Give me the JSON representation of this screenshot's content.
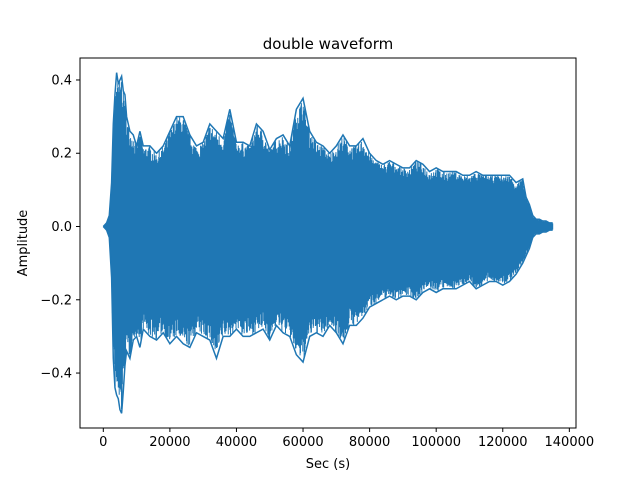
{
  "chart_data": {
    "type": "line",
    "title": "double waveform",
    "xlabel": "Sec (s)",
    "ylabel": "Amplitude",
    "xlim": [
      -7000,
      142000
    ],
    "ylim": [
      -0.55,
      0.46
    ],
    "grid": false,
    "legend": "none",
    "x_ticks": [
      0,
      20000,
      40000,
      60000,
      80000,
      100000,
      120000,
      140000
    ],
    "x_tick_labels": [
      "0",
      "20000",
      "40000",
      "60000",
      "80000",
      "100000",
      "120000",
      "140000"
    ],
    "y_ticks": [
      -0.4,
      -0.2,
      0.0,
      0.2,
      0.4
    ],
    "y_tick_labels": [
      "−0.4",
      "−0.2",
      "0.0",
      "0.2",
      "0.4"
    ],
    "series": [
      {
        "color": "#1f77b4",
        "envelope_x": [
          0,
          1000,
          1800,
          2500,
          3000,
          3500,
          4000,
          4500,
          5000,
          5500,
          6000,
          6500,
          7000,
          8000,
          9000,
          10000,
          11000,
          12000,
          14000,
          16000,
          18000,
          20000,
          22000,
          24000,
          26000,
          28000,
          30000,
          32000,
          34000,
          36000,
          38000,
          40000,
          42000,
          44000,
          46000,
          48000,
          50000,
          52000,
          54000,
          56000,
          58000,
          60000,
          62000,
          64000,
          66000,
          68000,
          70000,
          72000,
          74000,
          76000,
          78000,
          80000,
          82000,
          84000,
          86000,
          88000,
          90000,
          92000,
          94000,
          96000,
          98000,
          100000,
          102000,
          104000,
          106000,
          108000,
          110000,
          112000,
          114000,
          116000,
          118000,
          120000,
          122000,
          124000,
          126000,
          127000,
          128000,
          129000,
          130000,
          131000,
          132000,
          133000,
          134000,
          135000
        ],
        "upper": [
          0.0,
          0.01,
          0.03,
          0.12,
          0.28,
          0.36,
          0.42,
          0.39,
          0.4,
          0.41,
          0.37,
          0.36,
          0.3,
          0.26,
          0.25,
          0.22,
          0.26,
          0.22,
          0.22,
          0.2,
          0.22,
          0.26,
          0.3,
          0.3,
          0.25,
          0.22,
          0.23,
          0.28,
          0.26,
          0.24,
          0.32,
          0.23,
          0.23,
          0.22,
          0.28,
          0.26,
          0.21,
          0.24,
          0.25,
          0.22,
          0.32,
          0.35,
          0.26,
          0.23,
          0.22,
          0.2,
          0.22,
          0.25,
          0.22,
          0.22,
          0.24,
          0.2,
          0.18,
          0.17,
          0.18,
          0.17,
          0.16,
          0.16,
          0.18,
          0.17,
          0.15,
          0.16,
          0.15,
          0.15,
          0.15,
          0.14,
          0.14,
          0.15,
          0.14,
          0.14,
          0.14,
          0.14,
          0.14,
          0.12,
          0.13,
          0.08,
          0.06,
          0.03,
          0.02,
          0.02,
          0.015,
          0.015,
          0.01,
          0.01
        ],
        "lower": [
          0.0,
          -0.01,
          -0.03,
          -0.14,
          -0.36,
          -0.44,
          -0.46,
          -0.47,
          -0.5,
          -0.51,
          -0.45,
          -0.38,
          -0.34,
          -0.36,
          -0.31,
          -0.3,
          -0.33,
          -0.28,
          -0.3,
          -0.31,
          -0.29,
          -0.32,
          -0.3,
          -0.32,
          -0.33,
          -0.29,
          -0.3,
          -0.31,
          -0.36,
          -0.3,
          -0.3,
          -0.28,
          -0.3,
          -0.3,
          -0.29,
          -0.28,
          -0.31,
          -0.27,
          -0.29,
          -0.3,
          -0.35,
          -0.37,
          -0.3,
          -0.29,
          -0.3,
          -0.27,
          -0.29,
          -0.32,
          -0.27,
          -0.27,
          -0.25,
          -0.22,
          -0.21,
          -0.2,
          -0.19,
          -0.2,
          -0.19,
          -0.19,
          -0.2,
          -0.18,
          -0.17,
          -0.18,
          -0.17,
          -0.17,
          -0.17,
          -0.16,
          -0.15,
          -0.17,
          -0.16,
          -0.15,
          -0.15,
          -0.16,
          -0.15,
          -0.13,
          -0.1,
          -0.08,
          -0.06,
          -0.03,
          -0.02,
          -0.02,
          -0.015,
          -0.015,
          -0.01,
          -0.01
        ]
      }
    ]
  }
}
